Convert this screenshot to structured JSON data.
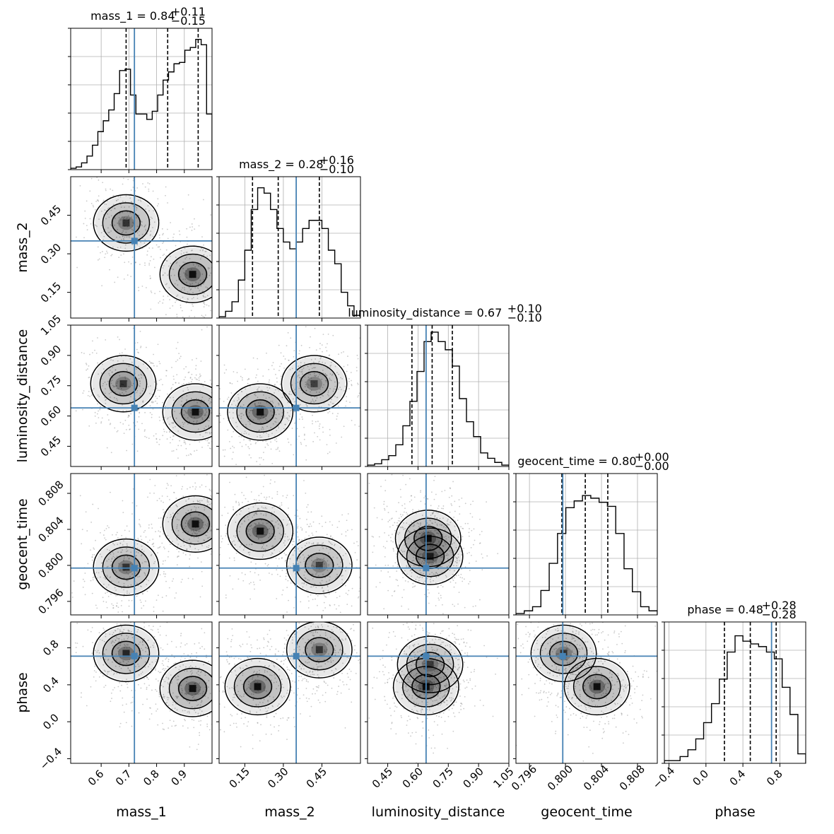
{
  "chart_data": {
    "type": "corner",
    "title": "",
    "parameters": [
      "mass_1",
      "mass_2",
      "luminosity_distance",
      "geocent_time",
      "phase"
    ],
    "axis_labels": [
      "mass_1",
      "mass_2",
      "luminosity_distance",
      "geocent_time",
      "phase"
    ],
    "ranges": [
      [
        0.49,
        1.0
      ],
      [
        0.05,
        0.6
      ],
      [
        0.35,
        1.05
      ],
      [
        0.7945,
        0.8102
      ],
      [
        -0.45,
        1.08
      ]
    ],
    "ticks": [
      {
        "values": [
          0.6,
          0.7,
          0.8,
          0.9
        ],
        "labels": [
          "0.6",
          "0.7",
          "0.8",
          "0.9"
        ]
      },
      {
        "values": [
          0.15,
          0.3,
          0.45
        ],
        "labels": [
          "0.15",
          "0.30",
          "0.45"
        ]
      },
      {
        "values": [
          0.45,
          0.6,
          0.75,
          0.9,
          1.05
        ],
        "labels": [
          "0.45",
          "0.60",
          "0.75",
          "0.90",
          "1.05"
        ]
      },
      {
        "values": [
          0.796,
          0.8,
          0.804,
          0.808
        ],
        "labels": [
          "0.796",
          "0.800",
          "0.804",
          "0.808"
        ]
      },
      {
        "values": [
          -0.4,
          0.0,
          0.4,
          0.8
        ],
        "labels": [
          "−0.4",
          "0.0",
          "0.4",
          "0.8"
        ]
      }
    ],
    "truths": [
      0.72,
      0.35,
      0.64,
      0.7997,
      0.71
    ],
    "quantiles": [
      [
        0.69,
        0.84,
        0.95
      ],
      [
        0.18,
        0.28,
        0.44
      ],
      [
        0.57,
        0.67,
        0.77
      ],
      [
        0.7996,
        0.8022,
        0.8047
      ],
      [
        0.2,
        0.48,
        0.76
      ]
    ],
    "titles": [
      {
        "name": "mass_1",
        "median": "0.84",
        "plus": "+0.11",
        "minus": "−0.15"
      },
      {
        "name": "mass_2",
        "median": "0.28",
        "plus": "+0.16",
        "minus": "−0.10"
      },
      {
        "name": "luminosity_distance",
        "median": "0.67",
        "plus": "+0.10",
        "minus": "−0.10"
      },
      {
        "name": "geocent_time",
        "median": "0.80",
        "plus": "+0.00",
        "minus": "−0.00"
      },
      {
        "name": "phase",
        "median": "0.48",
        "plus": "+0.28",
        "minus": "−0.28"
      }
    ],
    "histograms": [
      [
        0.01,
        0.02,
        0.05,
        0.1,
        0.18,
        0.28,
        0.36,
        0.44,
        0.56,
        0.73,
        0.74,
        0.55,
        0.41,
        0.41,
        0.37,
        0.43,
        0.55,
        0.66,
        0.72,
        0.78,
        0.79,
        0.88,
        0.9,
        0.96,
        0.92,
        0.41
      ],
      [
        0.01,
        0.05,
        0.12,
        0.28,
        0.5,
        0.8,
        0.96,
        0.92,
        0.8,
        0.66,
        0.56,
        0.51,
        0.56,
        0.66,
        0.72,
        0.72,
        0.66,
        0.5,
        0.4,
        0.19,
        0.09,
        0.02
      ],
      [
        0.01,
        0.02,
        0.05,
        0.08,
        0.16,
        0.3,
        0.48,
        0.7,
        0.92,
        0.99,
        0.92,
        0.86,
        0.74,
        0.5,
        0.33,
        0.22,
        0.1,
        0.06,
        0.03,
        0.01
      ],
      [
        0.01,
        0.03,
        0.06,
        0.18,
        0.38,
        0.6,
        0.79,
        0.84,
        0.88,
        0.86,
        0.83,
        0.8,
        0.6,
        0.34,
        0.17,
        0.06,
        0.03
      ],
      [
        0.02,
        0.02,
        0.05,
        0.1,
        0.18,
        0.3,
        0.44,
        0.62,
        0.82,
        0.94,
        0.9,
        0.88,
        0.86,
        0.82,
        0.77,
        0.56,
        0.36,
        0.07
      ]
    ],
    "density_modes": [
      [],
      [
        {
          "x": 0.69,
          "y": 0.42,
          "w": 0.7
        },
        {
          "x": 0.93,
          "y": 0.23,
          "w": 1.0
        }
      ],
      [
        {
          "x": 0.68,
          "y": 0.76,
          "w": 0.7
        },
        {
          "x": 0.95,
          "y": 0.62,
          "w": 1.0
        }
      ],
      [
        {
          "x": 0.69,
          "y": 0.7998,
          "w": 0.7
        },
        {
          "x": 0.94,
          "y": 0.8046,
          "w": 1.0
        }
      ],
      [
        {
          "x": 0.68,
          "y": 0.73,
          "w": 0.8
        },
        {
          "x": 0.93,
          "y": 0.38,
          "w": 1.0
        }
      ]
    ],
    "grid": true,
    "truth_color": "#4682b4",
    "contour_color": "#000000",
    "hist_color": "#000000"
  }
}
